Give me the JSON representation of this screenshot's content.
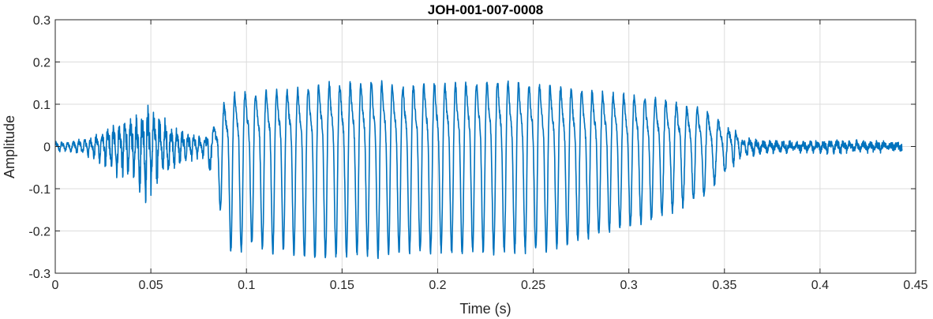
{
  "chart_data": {
    "type": "line",
    "title": "JOH-001-007-0008",
    "xlabel": "Time (s)",
    "ylabel": "Amplitude",
    "xlim": [
      0,
      0.45
    ],
    "ylim": [
      -0.3,
      0.3
    ],
    "x_ticks": [
      0,
      0.05,
      0.1,
      0.15,
      0.2,
      0.25,
      0.3,
      0.35,
      0.4,
      0.45
    ],
    "x_tick_labels": [
      "0",
      "0.05",
      "0.1",
      "0.15",
      "0.2",
      "0.25",
      "0.3",
      "0.35",
      "0.4",
      "0.45"
    ],
    "y_ticks": [
      -0.3,
      -0.2,
      -0.1,
      0,
      0.1,
      0.2,
      0.3
    ],
    "y_tick_labels": [
      "-0.3",
      "-0.2",
      "-0.1",
      "0",
      "0.1",
      "0.2",
      "0.3"
    ],
    "grid": true,
    "series": [
      {
        "color": "#0072BD",
        "x": [
          0,
          0.006,
          0.012,
          0.018,
          0.024,
          0.03,
          0.036,
          0.042,
          0.048,
          0.054,
          0.06,
          0.066,
          0.072,
          0.078,
          0.082,
          0.088,
          0.094,
          0.1,
          0.11,
          0.12,
          0.13,
          0.14,
          0.15,
          0.16,
          0.17,
          0.18,
          0.19,
          0.2,
          0.21,
          0.22,
          0.23,
          0.24,
          0.25,
          0.26,
          0.27,
          0.28,
          0.29,
          0.3,
          0.31,
          0.32,
          0.33,
          0.34,
          0.35,
          0.355,
          0.36,
          0.37,
          0.38,
          0.39,
          0.4,
          0.41,
          0.42,
          0.43,
          0.443
        ],
        "envelope_pos": [
          0.01,
          0.01,
          0.015,
          0.02,
          0.03,
          0.045,
          0.06,
          0.07,
          0.09,
          0.07,
          0.05,
          0.035,
          0.025,
          0.02,
          0.04,
          0.13,
          0.17,
          0.17,
          0.17,
          0.175,
          0.18,
          0.2,
          0.195,
          0.2,
          0.205,
          0.19,
          0.195,
          0.2,
          0.195,
          0.2,
          0.21,
          0.2,
          0.195,
          0.19,
          0.18,
          0.17,
          0.165,
          0.16,
          0.15,
          0.145,
          0.12,
          0.115,
          0.06,
          0.05,
          0.02,
          0.01,
          0.01,
          0.008,
          0.01,
          0.012,
          0.01,
          0.008,
          0.005
        ],
        "envelope_neg": [
          -0.01,
          -0.01,
          -0.015,
          -0.02,
          -0.03,
          -0.05,
          -0.06,
          -0.07,
          -0.1,
          -0.07,
          -0.05,
          -0.035,
          -0.025,
          -0.02,
          -0.06,
          -0.18,
          -0.28,
          -0.22,
          -0.25,
          -0.24,
          -0.26,
          -0.26,
          -0.255,
          -0.25,
          -0.26,
          -0.245,
          -0.25,
          -0.245,
          -0.25,
          -0.245,
          -0.25,
          -0.245,
          -0.245,
          -0.24,
          -0.23,
          -0.215,
          -0.2,
          -0.19,
          -0.175,
          -0.155,
          -0.135,
          -0.11,
          -0.06,
          -0.04,
          -0.02,
          -0.01,
          -0.01,
          -0.008,
          -0.01,
          -0.012,
          -0.01,
          -0.008,
          -0.005
        ],
        "cycle_period": [
          0.003,
          0.003,
          0.003,
          0.003,
          0.003,
          0.003,
          0.003,
          0.003,
          0.003,
          0.003,
          0.003,
          0.003,
          0.003,
          0.003,
          0.0055,
          0.0055,
          0.0055,
          0.0055,
          0.0055,
          0.0055,
          0.0055,
          0.0055,
          0.0055,
          0.0055,
          0.0055,
          0.0055,
          0.0055,
          0.0055,
          0.0055,
          0.0055,
          0.0055,
          0.0055,
          0.0055,
          0.0055,
          0.0055,
          0.0055,
          0.0055,
          0.0055,
          0.0055,
          0.0055,
          0.0055,
          0.0055,
          0.0055,
          0.0035,
          0.0035,
          0.0035,
          0.0035,
          0.0035,
          0.0035,
          0.0035,
          0.0035,
          0.0035,
          0.0035
        ]
      }
    ]
  }
}
